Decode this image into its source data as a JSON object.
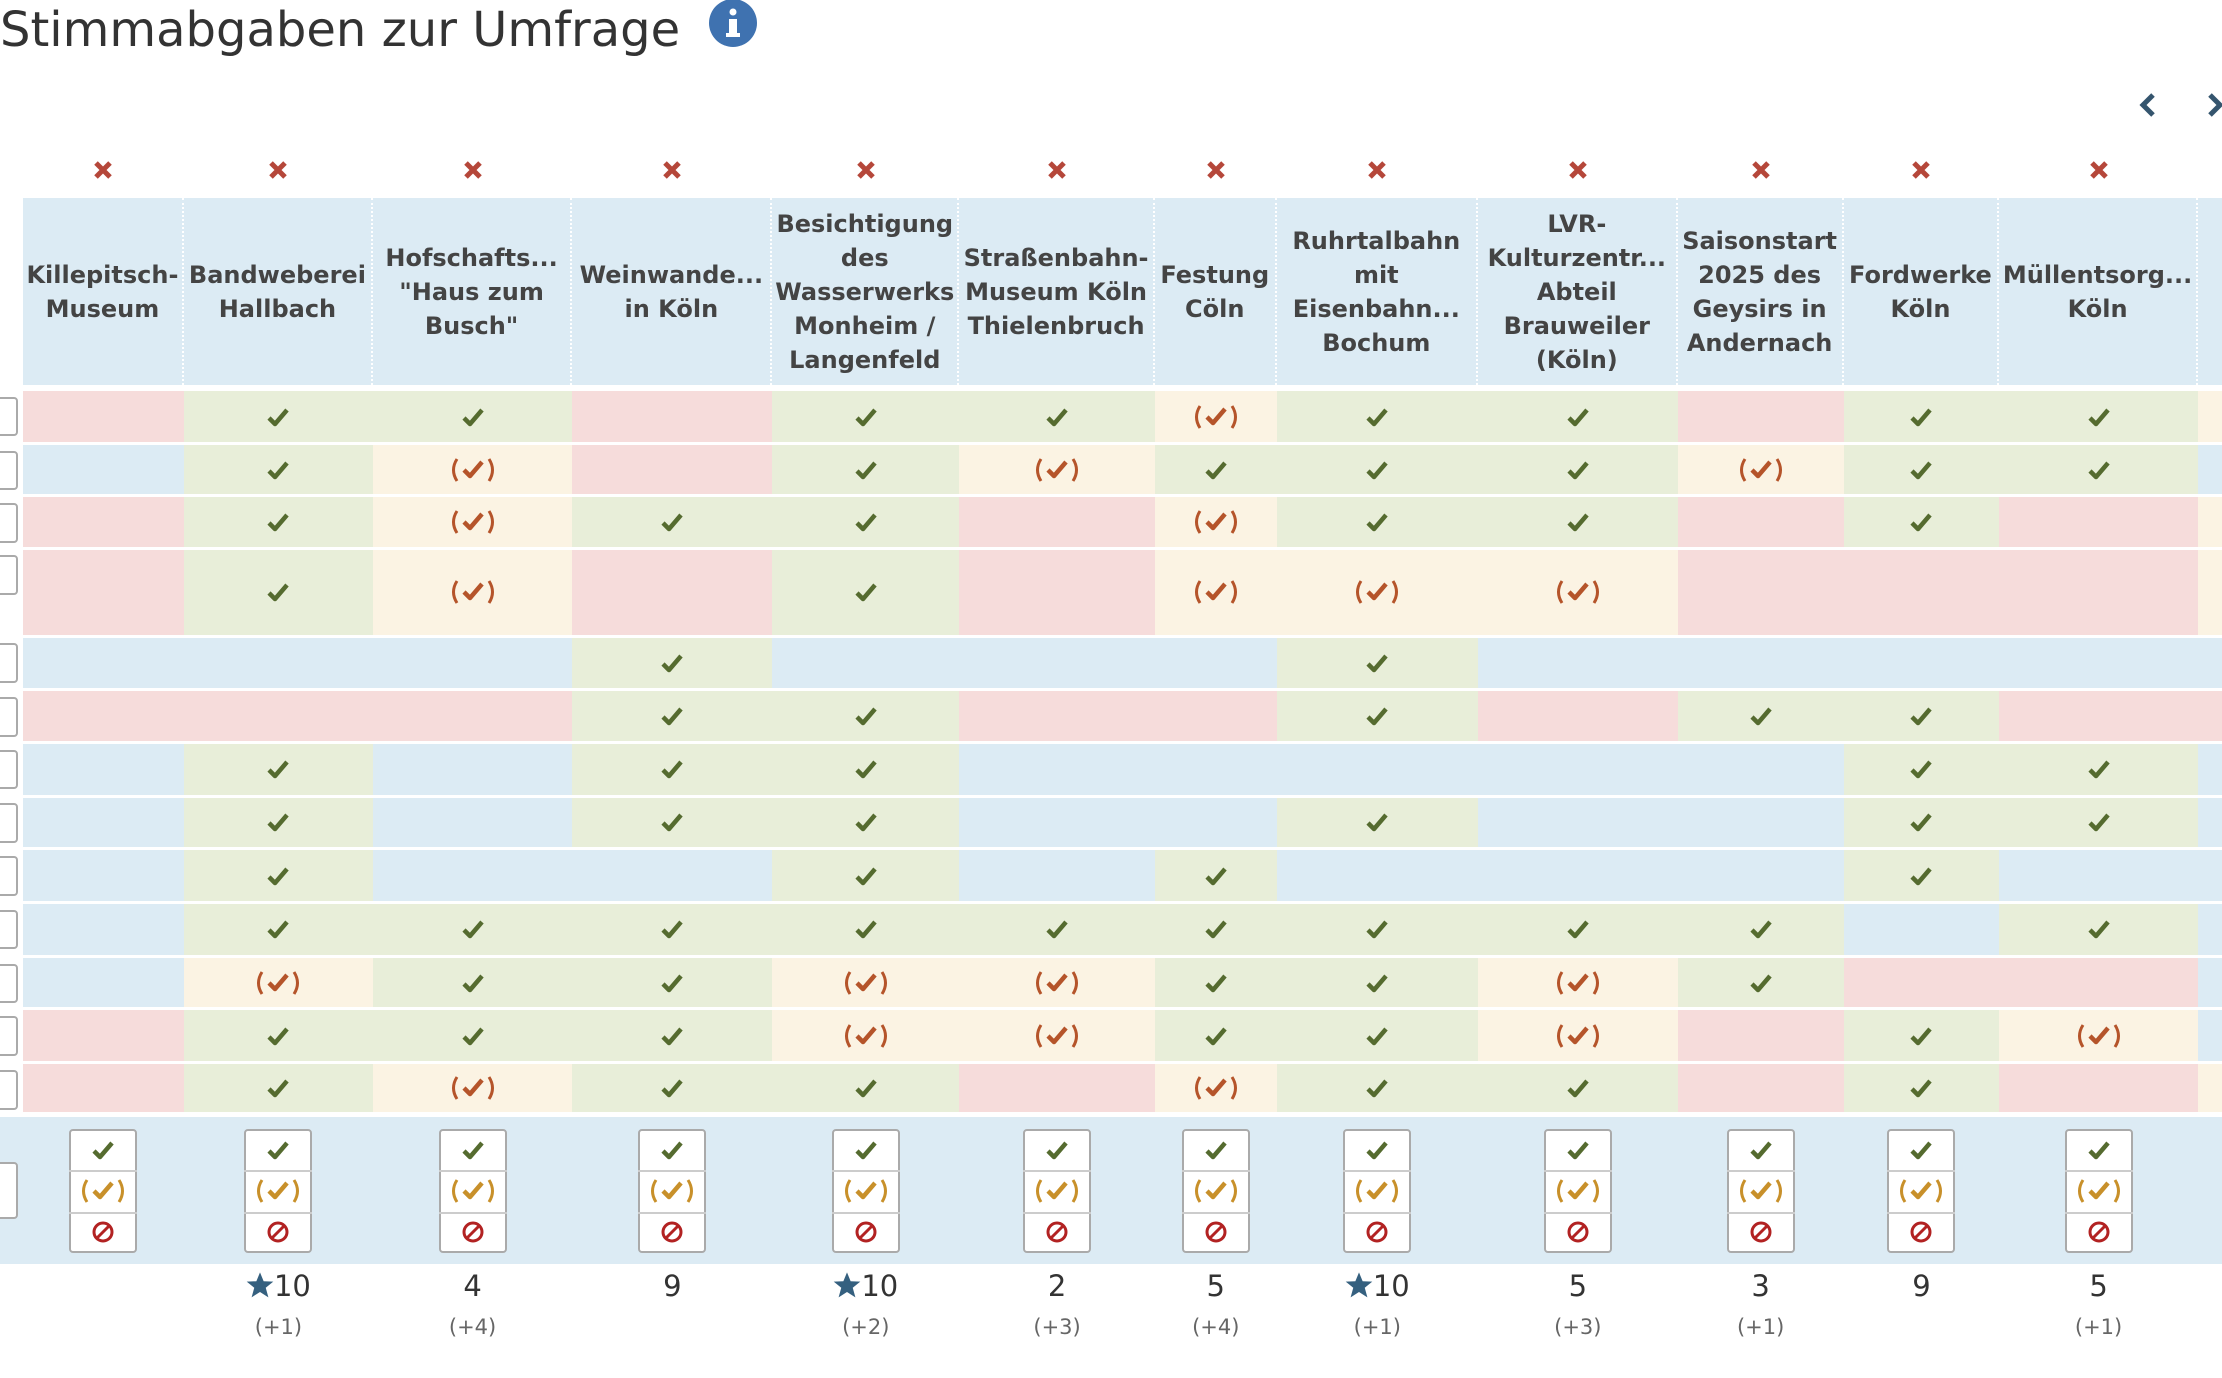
{
  "header": {
    "title": "Stimmabgaben zur Umfrage"
  },
  "columns": [
    {
      "label": "Killepitsch-\nMuseum",
      "total": null,
      "extra": null
    },
    {
      "label": "Bandweberei\nHallbach",
      "total": 10,
      "extra": "(+1)"
    },
    {
      "label": "Hofschafts...\n\"Haus zum\nBusch\"",
      "total": 4,
      "extra": "(+4)"
    },
    {
      "label": "Weinwande...\nin Köln",
      "total": 9,
      "extra": null
    },
    {
      "label": "Besichtigung\ndes\nWasserwerks\nMonheim /\nLangenfeld",
      "total": 10,
      "extra": "(+2)"
    },
    {
      "label": "Straßenbahn-\nMuseum Köln\nThielenbruch",
      "total": 2,
      "extra": "(+3)"
    },
    {
      "label": "Festung\nCöln",
      "total": 5,
      "extra": "(+4)"
    },
    {
      "label": "Ruhrtalbahn\nmit\nEisenbahn...\nBochum",
      "total": 10,
      "extra": "(+1)"
    },
    {
      "label": "LVR-\nKulturzentr...\nAbteil\nBrauweiler\n(Köln)",
      "total": 5,
      "extra": "(+3)"
    },
    {
      "label": "Saisonstart\n2025 des\nGeysirs in\nAndernach",
      "total": 3,
      "extra": "(+1)"
    },
    {
      "label": "Fordwerke\nKöln",
      "total": 9,
      "extra": null
    },
    {
      "label": "Müllentsorg...\nKöln",
      "total": 5,
      "extra": "(+1)"
    }
  ]
}
